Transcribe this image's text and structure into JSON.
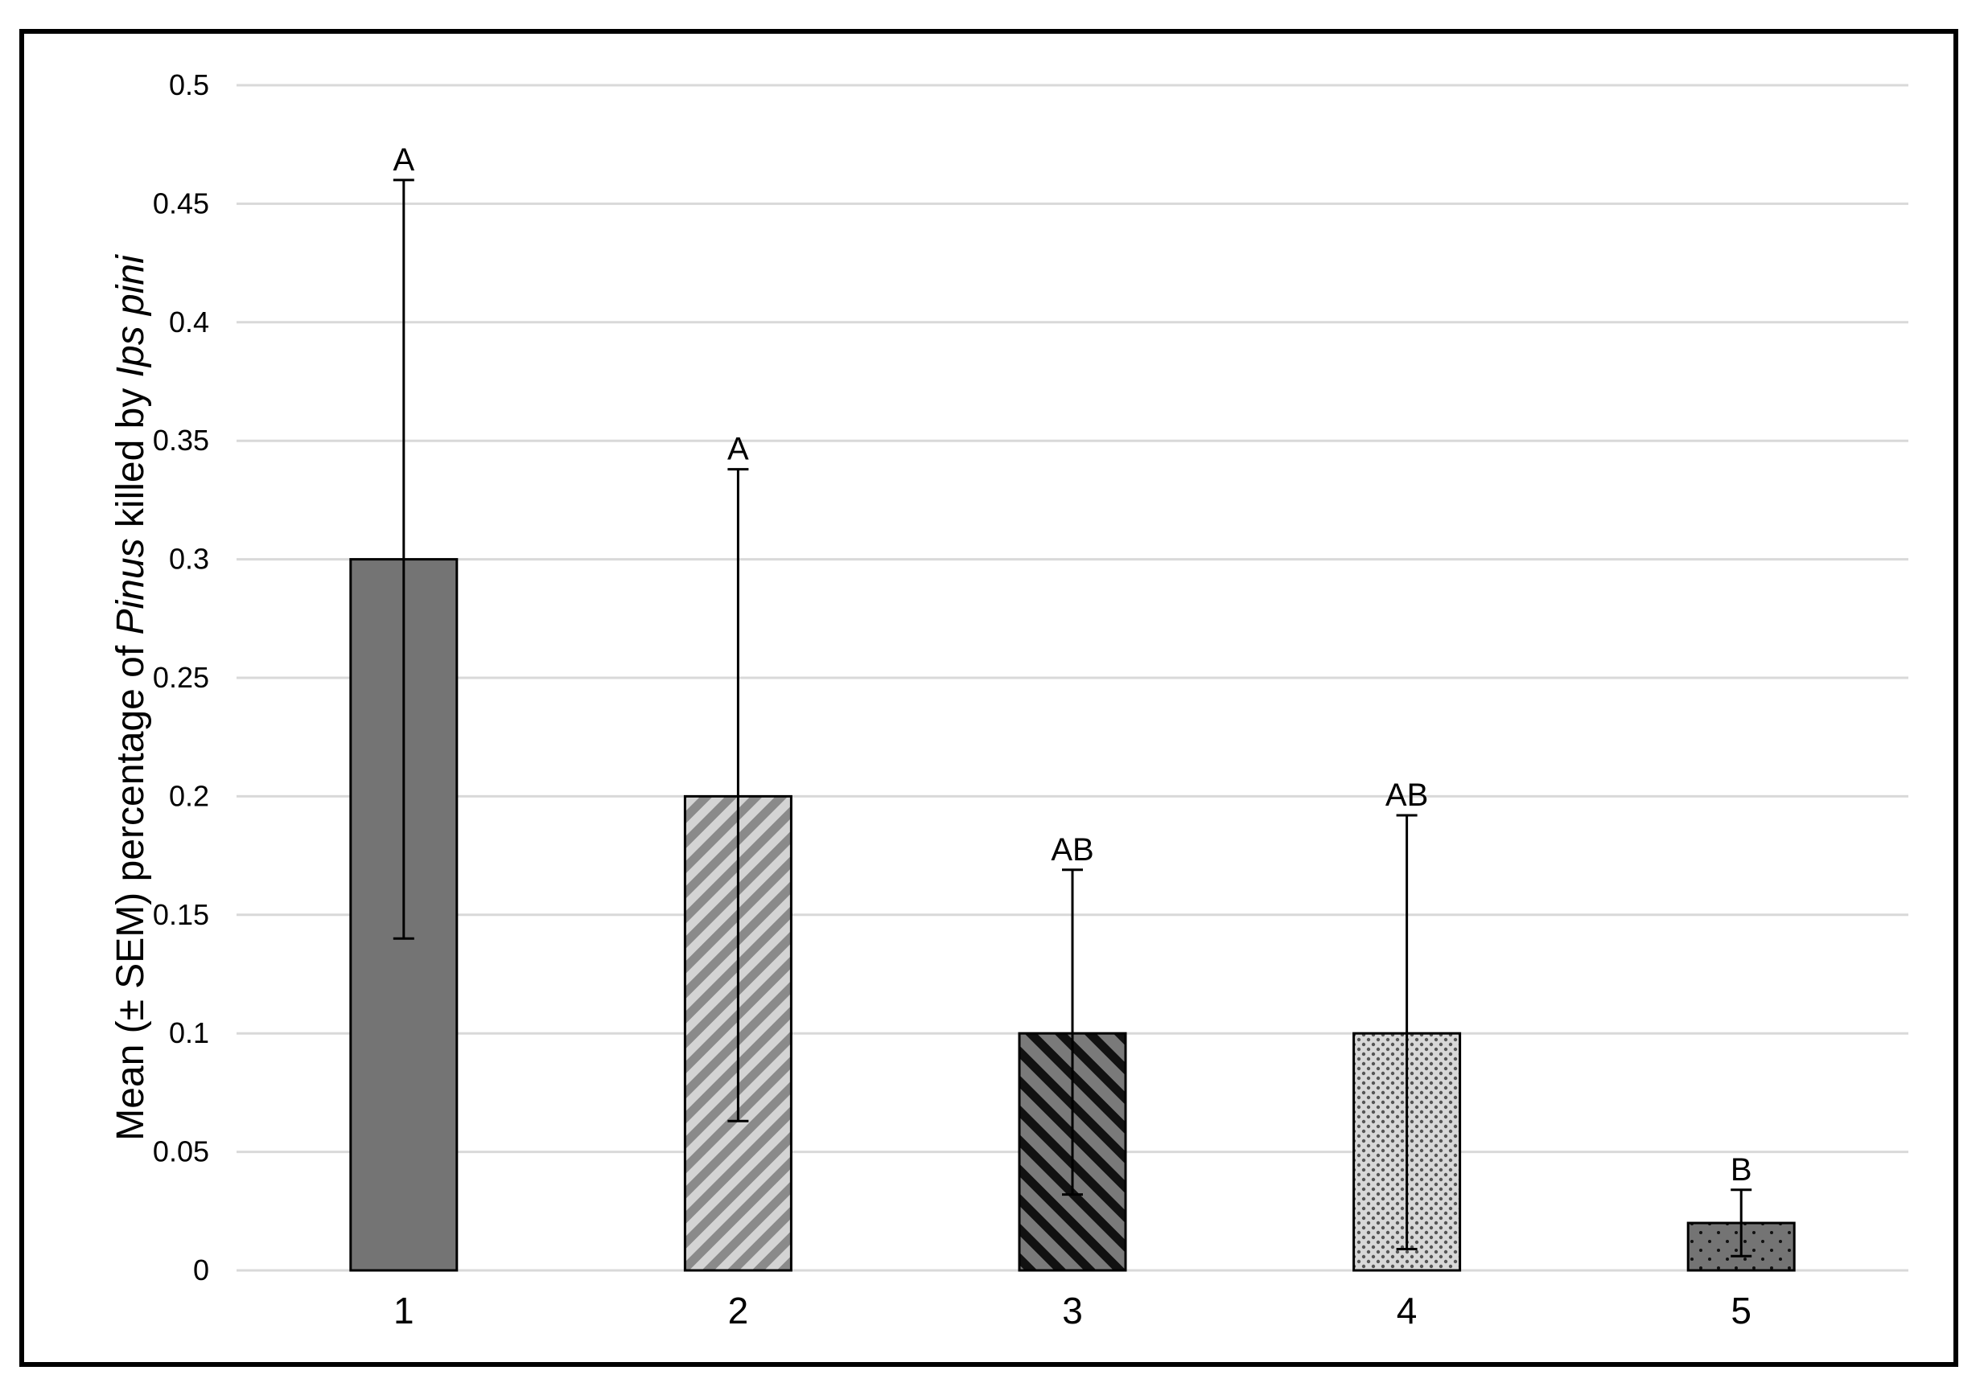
{
  "chart_data": {
    "type": "bar",
    "categories": [
      "1",
      "2",
      "3",
      "4",
      "5"
    ],
    "values": [
      0.3,
      0.2,
      0.1,
      0.1,
      0.02
    ],
    "error_upper": [
      0.46,
      0.338,
      0.169,
      0.192,
      0.034
    ],
    "error_lower": [
      0.14,
      0.063,
      0.032,
      0.009,
      0.006
    ],
    "significance_letters": [
      "A",
      "A",
      "AB",
      "AB",
      "B"
    ],
    "bar_fills": [
      "solid-dark",
      "diagonal-light-stripes",
      "diagonal-dark-stripes",
      "crosshatch-dots",
      "dark-dotted"
    ],
    "ylabel": {
      "prefix": "Mean (± SEM) percentage of ",
      "italic1": "Pinus",
      "middle": " killed by ",
      "italic2": "Ips pini"
    },
    "xlabel": "",
    "ylim": [
      0,
      0.5
    ],
    "yticks": [
      "0",
      "0.05",
      "0.1",
      "0.15",
      "0.2",
      "0.25",
      "0.3",
      "0.35",
      "0.4",
      "0.45",
      "0.5"
    ],
    "grid": true,
    "colors": {
      "bar_dark": "#747474",
      "bar_light_stripe": "#c8c8c8",
      "grid": "#d9d9d9",
      "outline": "#000000"
    }
  }
}
